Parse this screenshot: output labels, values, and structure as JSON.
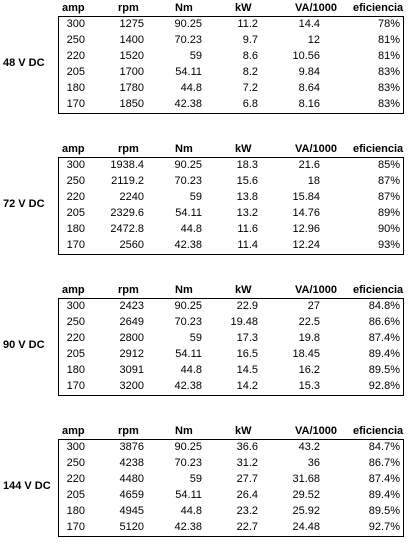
{
  "headers": {
    "amp": "amp",
    "rpm": "rpm",
    "nm": "Nm",
    "kw": "kW",
    "va": "VA/1000",
    "efficiency": "eficiencia"
  },
  "tables": [
    {
      "label": "48 V DC",
      "rows": [
        [
          "300",
          "1275",
          "90.25",
          "11.2",
          "14.4",
          "78%"
        ],
        [
          "250",
          "1400",
          "70.23",
          "9.7",
          "12",
          "81%"
        ],
        [
          "220",
          "1520",
          "59",
          "8.6",
          "10.56",
          "81%"
        ],
        [
          "205",
          "1700",
          "54.11",
          "8.2",
          "9.84",
          "83%"
        ],
        [
          "180",
          "1780",
          "44.8",
          "7.2",
          "8.64",
          "83%"
        ],
        [
          "170",
          "1850",
          "42.38",
          "6.8",
          "8.16",
          "83%"
        ]
      ]
    },
    {
      "label": "72 V DC",
      "rows": [
        [
          "300",
          "1938.4",
          "90.25",
          "18.3",
          "21.6",
          "85%"
        ],
        [
          "250",
          "2119.2",
          "70.23",
          "15.6",
          "18",
          "87%"
        ],
        [
          "220",
          "2240",
          "59",
          "13.8",
          "15.84",
          "87%"
        ],
        [
          "205",
          "2329.6",
          "54.11",
          "13.2",
          "14.76",
          "89%"
        ],
        [
          "180",
          "2472.8",
          "44.8",
          "11.6",
          "12.96",
          "90%"
        ],
        [
          "170",
          "2560",
          "42.38",
          "11.4",
          "12.24",
          "93%"
        ]
      ]
    },
    {
      "label": "90 V DC",
      "rows": [
        [
          "300",
          "2423",
          "90.25",
          "22.9",
          "27",
          "84.8%"
        ],
        [
          "250",
          "2649",
          "70.23",
          "19.48",
          "22.5",
          "86.6%"
        ],
        [
          "220",
          "2800",
          "59",
          "17.3",
          "19.8",
          "87.4%"
        ],
        [
          "205",
          "2912",
          "54.11",
          "16.5",
          "18.45",
          "89.4%"
        ],
        [
          "180",
          "3091",
          "44.8",
          "14.5",
          "16.2",
          "89.5%"
        ],
        [
          "170",
          "3200",
          "42.38",
          "14.2",
          "15.3",
          "92.8%"
        ]
      ]
    },
    {
      "label": "144 V DC",
      "rows": [
        [
          "300",
          "3876",
          "90.25",
          "36.6",
          "43.2",
          "84.7%"
        ],
        [
          "250",
          "4238",
          "70.23",
          "31.2",
          "36",
          "86.7%"
        ],
        [
          "220",
          "4480",
          "59",
          "27.7",
          "31.68",
          "87.4%"
        ],
        [
          "205",
          "4659",
          "54.11",
          "26.4",
          "29.52",
          "89.4%"
        ],
        [
          "180",
          "4945",
          "44.8",
          "23.2",
          "25.92",
          "89.5%"
        ],
        [
          "170",
          "5120",
          "42.38",
          "22.7",
          "24.48",
          "92.7%"
        ]
      ]
    }
  ]
}
